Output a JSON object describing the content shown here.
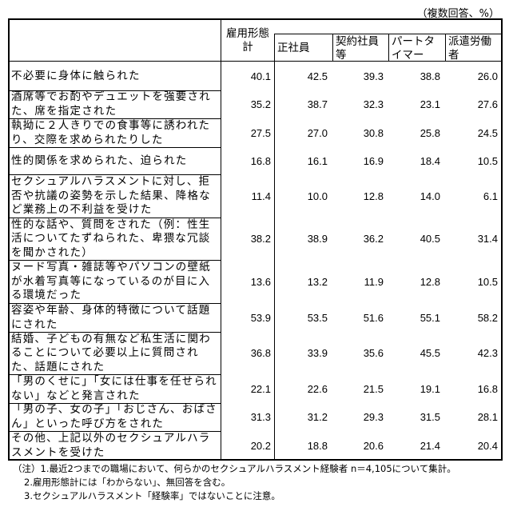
{
  "unit_note": "（複数回答、%）",
  "headers": {
    "total": "雇用形態計",
    "columns": [
      "正社員",
      "契約社員等",
      "パートタイマー",
      "派遣労働者"
    ]
  },
  "rows": [
    {
      "label": "不必要に身体に触られた",
      "values": [
        "40.1",
        "42.5",
        "39.3",
        "38.8",
        "26.0"
      ]
    },
    {
      "label": "酒席等でお酌やデュエットを強要された、席を指定された",
      "values": [
        "35.2",
        "38.7",
        "32.3",
        "23.1",
        "27.6"
      ]
    },
    {
      "label": "執拗に２人きりでの食事等に誘われたり、交際を求められたりした",
      "values": [
        "27.5",
        "27.0",
        "30.8",
        "25.8",
        "24.5"
      ]
    },
    {
      "label": "性的関係を求められた、迫られた",
      "values": [
        "16.8",
        "16.1",
        "16.9",
        "18.4",
        "10.5"
      ]
    },
    {
      "label": "セクシュアルハラスメントに対し、拒否や抗議の姿勢を示した結果、降格など業務上の不利益を受けた",
      "values": [
        "11.4",
        "10.0",
        "12.8",
        "14.0",
        "6.1"
      ]
    },
    {
      "label": "性的な話や、質問をされた（例：性生活についてたずねられた、卑猥な冗談を聞かされた）",
      "values": [
        "38.2",
        "38.9",
        "36.2",
        "40.5",
        "31.4"
      ]
    },
    {
      "label": "ヌード写真・雑誌等やパソコンの壁紙が水着写真等になっているのが目に入る環境だった",
      "values": [
        "13.6",
        "13.2",
        "11.9",
        "12.8",
        "10.5"
      ]
    },
    {
      "label": "容姿や年齢、身体的特徴について話題にされた",
      "values": [
        "53.9",
        "53.5",
        "51.6",
        "55.1",
        "58.2"
      ]
    },
    {
      "label": "結婚、子どもの有無など私生活に関わることについて必要以上に質問された、話題にされた",
      "values": [
        "36.8",
        "33.9",
        "35.6",
        "45.5",
        "42.3"
      ]
    },
    {
      "label": "「男のくせに」「女には仕事を任せられない」などと発言された",
      "values": [
        "22.1",
        "22.6",
        "21.5",
        "19.1",
        "16.8"
      ]
    },
    {
      "label": "「男の子、女の子」「おじさん、おばさん」といった呼び方をされた",
      "values": [
        "31.3",
        "31.2",
        "29.3",
        "31.5",
        "28.1"
      ]
    },
    {
      "label": "その他、上記以外のセクシュアルハラスメントを受けた",
      "values": [
        "20.2",
        "18.8",
        "20.6",
        "21.4",
        "20.4"
      ]
    }
  ],
  "notes": [
    "（注）1.最近2つまでの職場において、何らかのセクシュアルハラスメント経験者 n＝4,105について集計。",
    "2.雇用形態計には「わからない」、無回答を含む。",
    "3.セクシュアルハラスメント「経験率」ではないことに注意。"
  ]
}
